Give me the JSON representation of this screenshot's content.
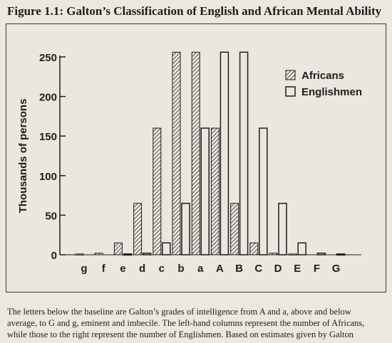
{
  "figure": {
    "title": "Figure 1.1: Galton’s Classification of English and African Mental Ability",
    "caption": [
      "The letters below the baseline are Galton’s grades of intelligence from A and a, above and below",
      "average, to G and g, eminent and imbecile. The left-hand columns represent the number of Africans,",
      "while those to the right represent the number of Englishmen. Based on estimates given by Galton"
    ]
  },
  "chart_data": {
    "type": "bar",
    "title": "",
    "xlabel": "",
    "ylabel": "Thousands of persons",
    "ylim": [
      0,
      250
    ],
    "yticks": [
      0,
      50,
      100,
      150,
      200,
      250
    ],
    "categories": [
      "g",
      "f",
      "e",
      "d",
      "c",
      "b",
      "a",
      "A",
      "B",
      "C",
      "D",
      "E",
      "F",
      "G"
    ],
    "series": [
      {
        "name": "Africans",
        "values": [
          1,
          2,
          15,
          65,
          160,
          256,
          256,
          160,
          65,
          15,
          2,
          1,
          0,
          0
        ],
        "pattern": "hatched"
      },
      {
        "name": "Englishmen",
        "values": [
          0,
          0,
          1,
          2,
          15,
          65,
          160,
          256,
          256,
          160,
          65,
          15,
          2,
          1
        ],
        "pattern": "open"
      }
    ],
    "legend_position": "top-right",
    "grid": false
  }
}
